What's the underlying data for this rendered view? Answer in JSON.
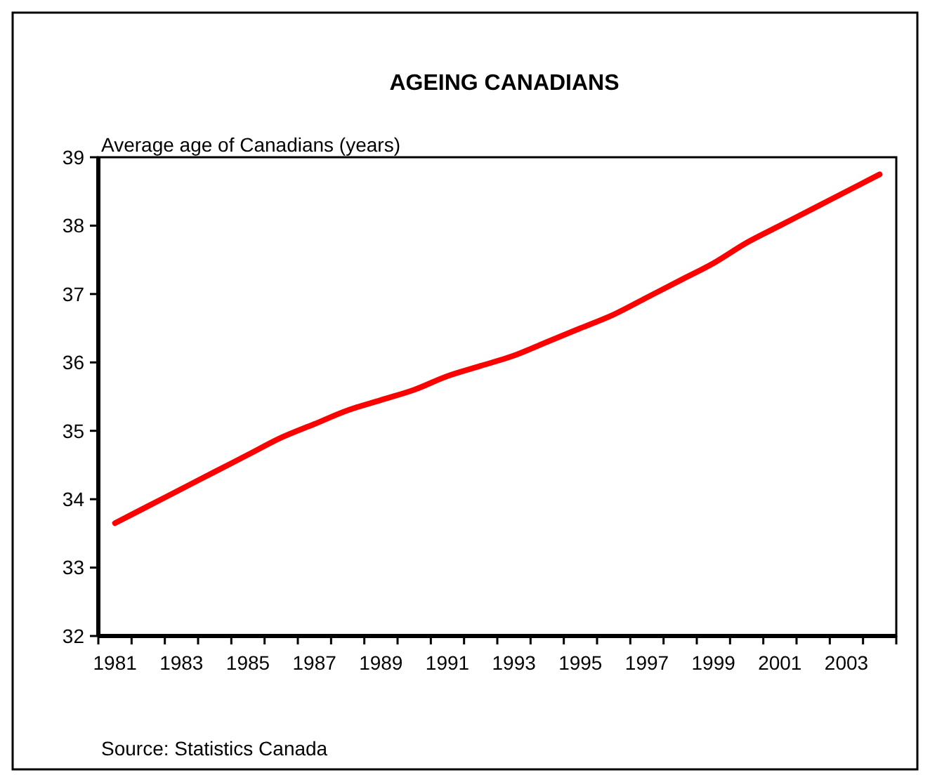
{
  "chart_data": {
    "type": "line",
    "title": "AGEING CANADIANS",
    "ylabel": "Average age of Canadians (years)",
    "categories": [
      "1981",
      null,
      "1983",
      null,
      "1985",
      null,
      "1987",
      null,
      "1989",
      null,
      "1991",
      null,
      "1993",
      null,
      "1995",
      null,
      "1997",
      null,
      "1999",
      null,
      "2001",
      null,
      "2003",
      null
    ],
    "series": [
      {
        "color": "#ff0000",
        "values": [
          33.65,
          33.9,
          34.15,
          34.4,
          34.65,
          34.9,
          35.1,
          35.3,
          35.45,
          35.6,
          35.8,
          35.95,
          36.1,
          36.3,
          36.5,
          36.7,
          36.95,
          37.2,
          37.45,
          37.75,
          38.0,
          38.25,
          38.5,
          38.75
        ]
      }
    ],
    "ylim": [
      32,
      39
    ],
    "yticks": [
      32,
      33,
      34,
      35,
      36,
      37,
      38,
      39
    ],
    "grid": false,
    "annotations": [
      "Source: Statistics Canada"
    ]
  }
}
